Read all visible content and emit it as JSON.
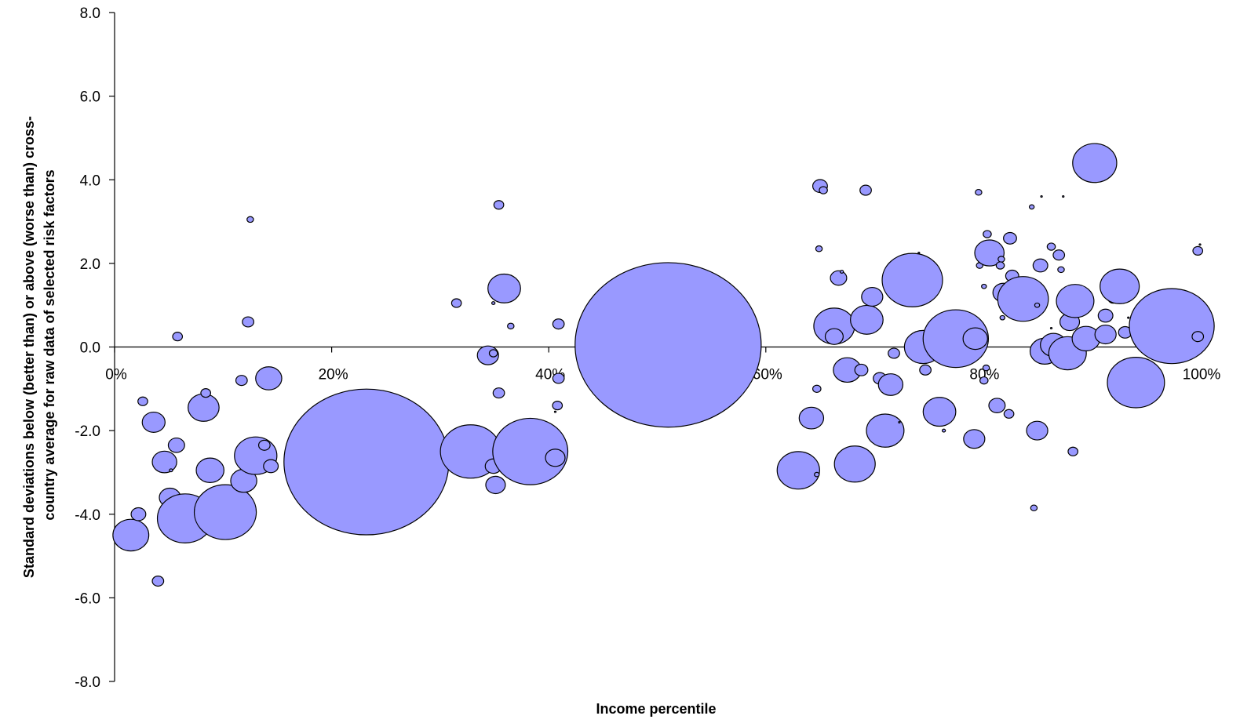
{
  "chart_data": {
    "type": "scatter",
    "subtype": "bubble",
    "xlabel": "Income percentile",
    "ylabel_lines": [
      "Standard deviations below (better than) or above (worse than) cross-",
      "country average for raw data of selected risk factors"
    ],
    "xlim": [
      0,
      100
    ],
    "ylim": [
      -8,
      8
    ],
    "x_ticks": [
      0,
      20,
      40,
      60,
      80,
      100
    ],
    "x_tick_labels": [
      "0%",
      "20%",
      "40%",
      "60%",
      "80%",
      "100%"
    ],
    "y_ticks": [
      8,
      6,
      4,
      2,
      0,
      -2,
      -4,
      -6,
      -8
    ],
    "y_tick_labels": [
      "8.0",
      "6.0",
      "4.0",
      "2.0",
      "0.0",
      "-2.0",
      "-4.0",
      "-6.0",
      "-8.0"
    ],
    "grid": false,
    "legend": "none",
    "colors": {
      "bubble_fill": "#9999ff",
      "bubble_stroke": "#000000"
    },
    "points": [
      {
        "x": 1.5,
        "y": -4.5,
        "size": 22
      },
      {
        "x": 2.2,
        "y": -4.0,
        "size": 9
      },
      {
        "x": 4.0,
        "y": -5.6,
        "size": 7
      },
      {
        "x": 2.6,
        "y": -1.3,
        "size": 6
      },
      {
        "x": 3.6,
        "y": -1.8,
        "size": 14
      },
      {
        "x": 4.6,
        "y": -2.75,
        "size": 15
      },
      {
        "x": 5.2,
        "y": -2.95,
        "size": 2
      },
      {
        "x": 5.7,
        "y": -2.35,
        "size": 10
      },
      {
        "x": 5.1,
        "y": -3.6,
        "size": 13
      },
      {
        "x": 6.5,
        "y": -4.1,
        "size": 34
      },
      {
        "x": 10.2,
        "y": -3.95,
        "size": 38
      },
      {
        "x": 5.8,
        "y": 0.25,
        "size": 6
      },
      {
        "x": 8.2,
        "y": -1.45,
        "size": 19
      },
      {
        "x": 8.4,
        "y": -1.1,
        "size": 6
      },
      {
        "x": 8.8,
        "y": -2.95,
        "size": 17
      },
      {
        "x": 11.7,
        "y": -0.8,
        "size": 7
      },
      {
        "x": 11.9,
        "y": -3.2,
        "size": 16
      },
      {
        "x": 12.3,
        "y": 0.6,
        "size": 7
      },
      {
        "x": 12.5,
        "y": 3.05,
        "size": 4
      },
      {
        "x": 13.0,
        "y": -2.6,
        "size": 26
      },
      {
        "x": 13.8,
        "y": -2.35,
        "size": 7
      },
      {
        "x": 14.4,
        "y": -2.85,
        "size": 9
      },
      {
        "x": 14.2,
        "y": -0.75,
        "size": 16
      },
      {
        "x": 23.2,
        "y": -2.75,
        "size": 101
      },
      {
        "x": 31.5,
        "y": 1.05,
        "size": 6
      },
      {
        "x": 32.8,
        "y": -2.5,
        "size": 37
      },
      {
        "x": 34.4,
        "y": -0.2,
        "size": 13
      },
      {
        "x": 34.9,
        "y": -0.15,
        "size": 5
      },
      {
        "x": 34.9,
        "y": 1.05,
        "size": 2
      },
      {
        "x": 34.9,
        "y": -2.85,
        "size": 10
      },
      {
        "x": 35.1,
        "y": -3.3,
        "size": 12
      },
      {
        "x": 35.9,
        "y": 1.4,
        "size": 20
      },
      {
        "x": 35.4,
        "y": 3.4,
        "size": 6
      },
      {
        "x": 35.4,
        "y": -1.1,
        "size": 7
      },
      {
        "x": 36.5,
        "y": 0.5,
        "size": 4
      },
      {
        "x": 38.3,
        "y": -2.5,
        "size": 46
      },
      {
        "x": 40.6,
        "y": -2.65,
        "size": 12
      },
      {
        "x": 40.9,
        "y": -0.75,
        "size": 7
      },
      {
        "x": 40.9,
        "y": 0.55,
        "size": 7
      },
      {
        "x": 40.8,
        "y": -1.4,
        "size": 6
      },
      {
        "x": 40.6,
        "y": -1.55,
        "size": 1
      },
      {
        "x": 51.0,
        "y": 0.05,
        "size": 114
      },
      {
        "x": 63.0,
        "y": -2.95,
        "size": 26
      },
      {
        "x": 64.7,
        "y": -3.05,
        "size": 3
      },
      {
        "x": 64.2,
        "y": -1.7,
        "size": 15
      },
      {
        "x": 65.0,
        "y": 3.85,
        "size": 9
      },
      {
        "x": 65.3,
        "y": 3.75,
        "size": 5
      },
      {
        "x": 64.9,
        "y": 2.35,
        "size": 4
      },
      {
        "x": 64.7,
        "y": -1.0,
        "size": 5
      },
      {
        "x": 66.3,
        "y": 0.5,
        "size": 25
      },
      {
        "x": 66.3,
        "y": 0.25,
        "size": 11
      },
      {
        "x": 66.7,
        "y": 1.65,
        "size": 10
      },
      {
        "x": 67.0,
        "y": 1.8,
        "size": 2
      },
      {
        "x": 67.5,
        "y": -0.55,
        "size": 17
      },
      {
        "x": 68.2,
        "y": -2.8,
        "size": 25
      },
      {
        "x": 68.8,
        "y": -0.55,
        "size": 8
      },
      {
        "x": 69.2,
        "y": 3.75,
        "size": 7
      },
      {
        "x": 69.3,
        "y": 0.65,
        "size": 20
      },
      {
        "x": 69.8,
        "y": 1.2,
        "size": 13
      },
      {
        "x": 70.5,
        "y": -0.75,
        "size": 8
      },
      {
        "x": 71.5,
        "y": -0.9,
        "size": 15
      },
      {
        "x": 71.0,
        "y": -2.0,
        "size": 23
      },
      {
        "x": 71.8,
        "y": -0.15,
        "size": 7
      },
      {
        "x": 72.3,
        "y": -1.8,
        "size": 1
      },
      {
        "x": 73.5,
        "y": 1.6,
        "size": 37
      },
      {
        "x": 74.1,
        "y": 2.25,
        "size": 1
      },
      {
        "x": 74.5,
        "y": 0.0,
        "size": 23
      },
      {
        "x": 74.7,
        "y": -0.55,
        "size": 7
      },
      {
        "x": 76.0,
        "y": -1.55,
        "size": 20
      },
      {
        "x": 76.4,
        "y": -2.0,
        "size": 2
      },
      {
        "x": 77.5,
        "y": 0.2,
        "size": 40
      },
      {
        "x": 79.3,
        "y": 0.2,
        "size": 15
      },
      {
        "x": 79.2,
        "y": -2.2,
        "size": 13
      },
      {
        "x": 79.6,
        "y": 3.7,
        "size": 4
      },
      {
        "x": 79.7,
        "y": 1.95,
        "size": 4
      },
      {
        "x": 80.1,
        "y": 1.45,
        "size": 3
      },
      {
        "x": 80.1,
        "y": -0.8,
        "size": 5
      },
      {
        "x": 80.3,
        "y": -0.5,
        "size": 4
      },
      {
        "x": 80.4,
        "y": 2.7,
        "size": 5
      },
      {
        "x": 80.6,
        "y": 2.25,
        "size": 18
      },
      {
        "x": 81.3,
        "y": -1.4,
        "size": 10
      },
      {
        "x": 81.7,
        "y": 2.1,
        "size": 4
      },
      {
        "x": 81.6,
        "y": 1.95,
        "size": 5
      },
      {
        "x": 81.8,
        "y": 0.7,
        "size": 3
      },
      {
        "x": 81.9,
        "y": 1.3,
        "size": 13
      },
      {
        "x": 82.2,
        "y": 1.4,
        "size": 4
      },
      {
        "x": 82.4,
        "y": -1.6,
        "size": 6
      },
      {
        "x": 82.5,
        "y": 2.6,
        "size": 8
      },
      {
        "x": 82.7,
        "y": 1.7,
        "size": 8
      },
      {
        "x": 83.7,
        "y": 1.15,
        "size": 31
      },
      {
        "x": 84.5,
        "y": 3.35,
        "size": 3
      },
      {
        "x": 84.7,
        "y": -3.85,
        "size": 4
      },
      {
        "x": 85.0,
        "y": -2.0,
        "size": 13
      },
      {
        "x": 85.3,
        "y": 1.95,
        "size": 9
      },
      {
        "x": 85.4,
        "y": 3.6,
        "size": 1
      },
      {
        "x": 85.0,
        "y": 1.0,
        "size": 3
      },
      {
        "x": 85.7,
        "y": -0.1,
        "size": 18
      },
      {
        "x": 86.5,
        "y": 0.05,
        "size": 16
      },
      {
        "x": 86.3,
        "y": 2.4,
        "size": 5
      },
      {
        "x": 86.3,
        "y": 0.45,
        "size": 1
      },
      {
        "x": 87.0,
        "y": 2.2,
        "size": 7
      },
      {
        "x": 87.2,
        "y": 1.85,
        "size": 4
      },
      {
        "x": 87.4,
        "y": 3.6,
        "size": 1
      },
      {
        "x": 87.8,
        "y": -0.15,
        "size": 23
      },
      {
        "x": 88.0,
        "y": 0.6,
        "size": 12
      },
      {
        "x": 88.3,
        "y": -2.5,
        "size": 6
      },
      {
        "x": 88.5,
        "y": 1.1,
        "size": 23
      },
      {
        "x": 89.5,
        "y": 0.2,
        "size": 17
      },
      {
        "x": 90.3,
        "y": 4.4,
        "size": 27
      },
      {
        "x": 91.3,
        "y": 0.3,
        "size": 13
      },
      {
        "x": 91.3,
        "y": 0.75,
        "size": 9
      },
      {
        "x": 92.0,
        "y": 1.15,
        "size": 6
      },
      {
        "x": 92.6,
        "y": 1.45,
        "size": 24
      },
      {
        "x": 93.1,
        "y": 0.35,
        "size": 8
      },
      {
        "x": 93.4,
        "y": 0.7,
        "size": 1
      },
      {
        "x": 94.1,
        "y": -0.85,
        "size": 35
      },
      {
        "x": 97.4,
        "y": 0.5,
        "size": 52
      },
      {
        "x": 99.8,
        "y": 0.25,
        "size": 7
      },
      {
        "x": 99.8,
        "y": 2.3,
        "size": 6
      },
      {
        "x": 100.0,
        "y": 2.45,
        "size": 1
      }
    ]
  }
}
